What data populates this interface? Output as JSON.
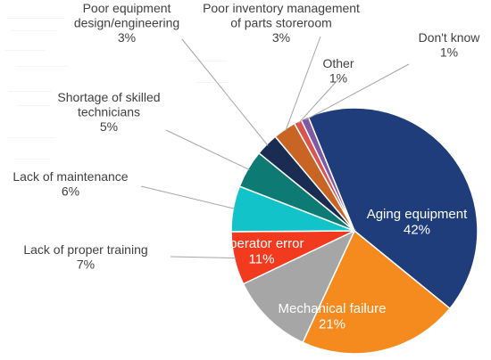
{
  "chart_data": {
    "type": "pie",
    "title": "",
    "xlabel": "",
    "ylabel": "",
    "categories": [
      "Aging equipment",
      "Mechanical failure",
      "Operator error",
      "Lack of proper training",
      "Lack of maintenance",
      "Shortage of skilled technicians",
      "Poor equipment design/engineering",
      "Poor inventory management of parts storeroom",
      "Other",
      "Don't know"
    ],
    "values": [
      42,
      21,
      11,
      7,
      6,
      5,
      3,
      3,
      1,
      1
    ],
    "value_labels": [
      "42%",
      "21%",
      "11%",
      "7%",
      "6%",
      "5%",
      "3%",
      "3%",
      "1%",
      "1%"
    ],
    "label_lines": [
      [
        "Aging equipment"
      ],
      [
        "Mechanical failure"
      ],
      [
        "Operator error"
      ],
      [
        "Lack of proper training"
      ],
      [
        "Lack of maintenance"
      ],
      [
        "Shortage of skilled",
        "technicians"
      ],
      [
        "Poor equipment",
        "design/engineering"
      ],
      [
        "Poor inventory management",
        "of parts storeroom"
      ],
      [
        "Other"
      ],
      [
        "Don't know"
      ]
    ],
    "label_placement": [
      "inside",
      "inside",
      "inside",
      "outside",
      "outside",
      "outside",
      "outside",
      "outside",
      "outside",
      "outside"
    ],
    "colors": [
      "#1f3d7a",
      "#f58a1f",
      "#a6a6a6",
      "#f23a1e",
      "#12c4c9",
      "#0d7a73",
      "#1a2c52",
      "#c86424",
      "#d9534f",
      "#7f5aa3"
    ],
    "inside_label_color": "#ffffff",
    "outside_label_color": "#404040",
    "leader_line_color": "#a6a6a6",
    "legend": "none",
    "grid": false
  }
}
